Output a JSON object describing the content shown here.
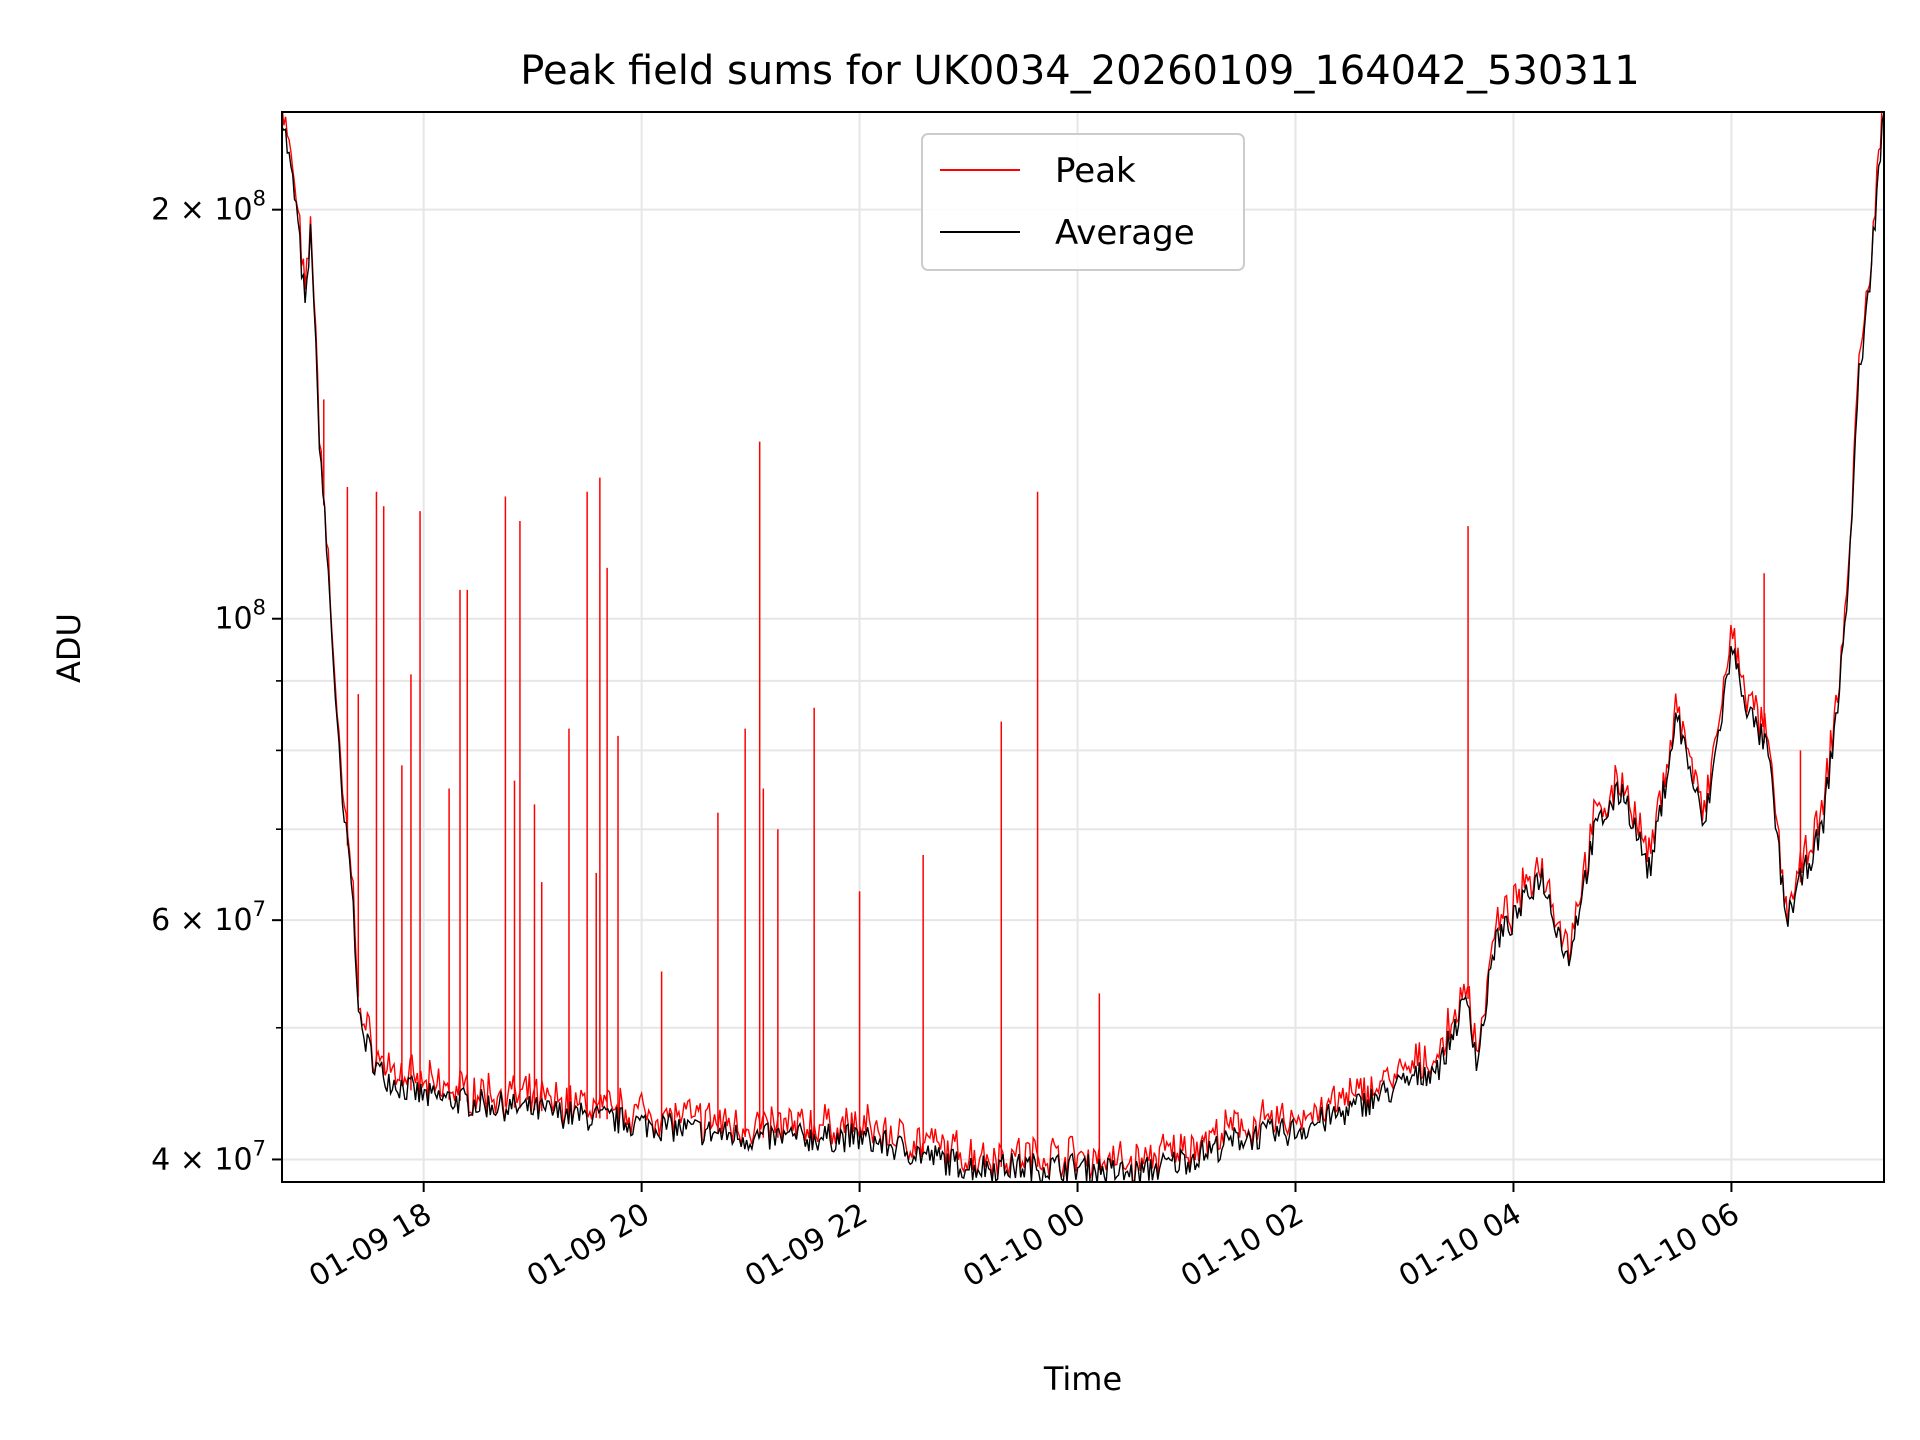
{
  "chart_data": {
    "type": "line",
    "title": "Peak field sums for UK0034_20260109_164042_530311",
    "xlabel": "Time",
    "ylabel": "ADU",
    "y_scale": "log",
    "ylim": [
      38500000,
      236000000
    ],
    "xlim": [
      "2026-01-09 16:42",
      "2026-01-10 07:24"
    ],
    "x_ticks": [
      "2026-01-09 18:00",
      "2026-01-09 20:00",
      "2026-01-09 22:00",
      "2026-01-10 00:00",
      "2026-01-10 02:00",
      "2026-01-10 04:00",
      "2026-01-10 06:00"
    ],
    "x_tick_labels": [
      "01-09 18",
      "01-09 20",
      "01-09 22",
      "01-10 00",
      "01-10 02",
      "01-10 04",
      "01-10 06"
    ],
    "y_major_ticks": [
      40000000,
      60000000,
      100000000,
      200000000
    ],
    "y_major_tick_labels": [
      {
        "mantissa": "4",
        "exp": "7"
      },
      {
        "mantissa": "6",
        "exp": "7"
      },
      {
        "mantissa": "",
        "exp": "8"
      },
      {
        "mantissa": "2",
        "exp": "8"
      }
    ],
    "y_tick_base": "10",
    "y_tick_times": "×",
    "y_minor_ticks": [
      50000000,
      70000000,
      80000000,
      90000000
    ],
    "grid": true,
    "legend": {
      "position": "upper-center",
      "entries": [
        "Peak",
        "Average"
      ]
    },
    "series": [
      {
        "name": "Average",
        "color": "#000000",
        "x": [
          "2026-01-09 16:42",
          "2026-01-09 16:50",
          "2026-01-09 16:55",
          "2026-01-09 16:58",
          "2026-01-09 17:02",
          "2026-01-09 17:08",
          "2026-01-09 17:15",
          "2026-01-09 17:20",
          "2026-01-09 17:25",
          "2026-01-09 17:35",
          "2026-01-09 17:45",
          "2026-01-09 18:00",
          "2026-01-09 18:30",
          "2026-01-09 19:00",
          "2026-01-09 19:30",
          "2026-01-09 20:00",
          "2026-01-09 20:30",
          "2026-01-09 21:00",
          "2026-01-09 21:30",
          "2026-01-09 22:00",
          "2026-01-09 22:30",
          "2026-01-09 23:00",
          "2026-01-09 23:30",
          "2026-01-10 00:00",
          "2026-01-10 00:30",
          "2026-01-10 01:00",
          "2026-01-10 01:30",
          "2026-01-10 02:00",
          "2026-01-10 02:30",
          "2026-01-10 03:00",
          "2026-01-10 03:20",
          "2026-01-10 03:30",
          "2026-01-10 03:35",
          "2026-01-10 03:40",
          "2026-01-10 03:50",
          "2026-01-10 04:00",
          "2026-01-10 04:15",
          "2026-01-10 04:30",
          "2026-01-10 04:45",
          "2026-01-10 05:00",
          "2026-01-10 05:15",
          "2026-01-10 05:30",
          "2026-01-10 05:45",
          "2026-01-10 06:00",
          "2026-01-10 06:10",
          "2026-01-10 06:20",
          "2026-01-10 06:30",
          "2026-01-10 06:40",
          "2026-01-10 06:50",
          "2026-01-10 07:00",
          "2026-01-10 07:05",
          "2026-01-10 07:10",
          "2026-01-10 07:15",
          "2026-01-10 07:20",
          "2026-01-10 07:24"
        ],
        "values": [
          236000000,
          200000000,
          168000000,
          195000000,
          140000000,
          105000000,
          73000000,
          65000000,
          50000000,
          46500000,
          45500000,
          44500000,
          44000000,
          43500000,
          43000000,
          42500000,
          42000000,
          41500000,
          41500000,
          41500000,
          40500000,
          39500000,
          39500000,
          39500000,
          39000000,
          40000000,
          41500000,
          42000000,
          43500000,
          45500000,
          47000000,
          51000000,
          52500000,
          47000000,
          58000000,
          60000000,
          65000000,
          56000000,
          70000000,
          75000000,
          65000000,
          85000000,
          70000000,
          95000000,
          85000000,
          80000000,
          60000000,
          65000000,
          70000000,
          90000000,
          110000000,
          150000000,
          170000000,
          205000000,
          236000000
        ]
      },
      {
        "name": "Peak",
        "color": "#ff0000",
        "spikes": [
          {
            "x": "2026-01-09 17:05",
            "value": 145000000
          },
          {
            "x": "2026-01-09 17:18",
            "value": 125000000
          },
          {
            "x": "2026-01-09 17:24",
            "value": 88000000
          },
          {
            "x": "2026-01-09 17:34",
            "value": 124000000
          },
          {
            "x": "2026-01-09 17:38",
            "value": 121000000
          },
          {
            "x": "2026-01-09 17:48",
            "value": 78000000
          },
          {
            "x": "2026-01-09 17:53",
            "value": 91000000
          },
          {
            "x": "2026-01-09 17:58",
            "value": 120000000
          },
          {
            "x": "2026-01-09 18:14",
            "value": 75000000
          },
          {
            "x": "2026-01-09 18:20",
            "value": 105000000
          },
          {
            "x": "2026-01-09 18:24",
            "value": 105000000
          },
          {
            "x": "2026-01-09 18:45",
            "value": 123000000
          },
          {
            "x": "2026-01-09 18:50",
            "value": 76000000
          },
          {
            "x": "2026-01-09 18:53",
            "value": 118000000
          },
          {
            "x": "2026-01-09 19:01",
            "value": 73000000
          },
          {
            "x": "2026-01-09 19:05",
            "value": 64000000
          },
          {
            "x": "2026-01-09 19:20",
            "value": 83000000
          },
          {
            "x": "2026-01-09 19:30",
            "value": 124000000
          },
          {
            "x": "2026-01-09 19:35",
            "value": 65000000
          },
          {
            "x": "2026-01-09 19:37",
            "value": 127000000
          },
          {
            "x": "2026-01-09 19:41",
            "value": 109000000
          },
          {
            "x": "2026-01-09 19:47",
            "value": 82000000
          },
          {
            "x": "2026-01-09 20:11",
            "value": 55000000
          },
          {
            "x": "2026-01-09 20:42",
            "value": 72000000
          },
          {
            "x": "2026-01-09 20:57",
            "value": 83000000
          },
          {
            "x": "2026-01-09 21:05",
            "value": 135000000
          },
          {
            "x": "2026-01-09 21:07",
            "value": 75000000
          },
          {
            "x": "2026-01-09 21:15",
            "value": 70000000
          },
          {
            "x": "2026-01-09 21:35",
            "value": 86000000
          },
          {
            "x": "2026-01-09 22:00",
            "value": 63000000
          },
          {
            "x": "2026-01-09 22:35",
            "value": 67000000
          },
          {
            "x": "2026-01-09 23:18",
            "value": 84000000
          },
          {
            "x": "2026-01-10 00:12",
            "value": 53000000
          },
          {
            "x": "2026-01-09 23:38",
            "value": 124000000
          },
          {
            "x": "2026-01-10 03:35",
            "value": 117000000
          },
          {
            "x": "2026-01-10 06:18",
            "value": 108000000
          },
          {
            "x": "2026-01-10 06:38",
            "value": 80000000
          }
        ]
      }
    ]
  }
}
